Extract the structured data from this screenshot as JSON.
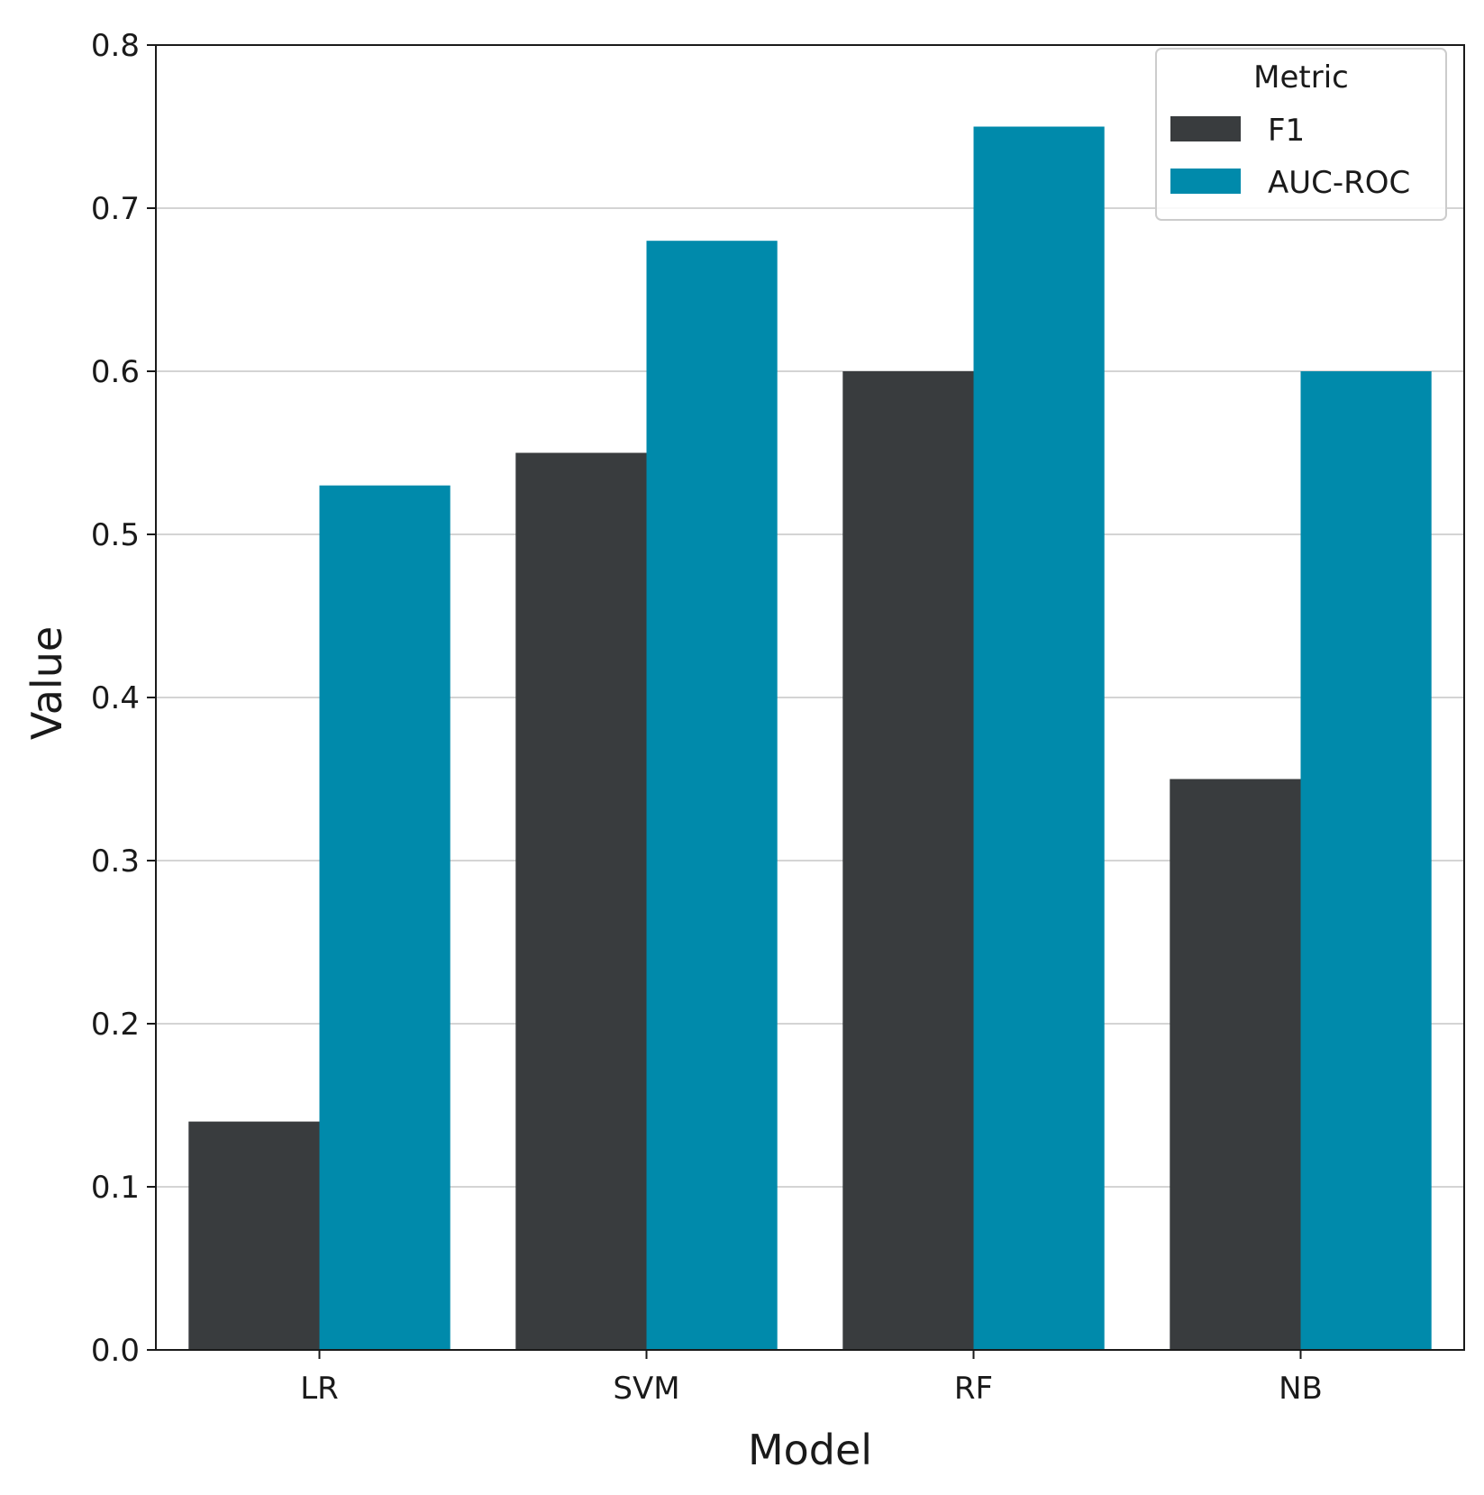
{
  "chart_data": {
    "type": "bar",
    "title": "",
    "xlabel": "Model",
    "ylabel": "Value",
    "ylim": [
      0,
      0.8
    ],
    "yticks": [
      0.0,
      0.1,
      0.2,
      0.3,
      0.4,
      0.5,
      0.6,
      0.7,
      0.8
    ],
    "ytick_labels": [
      "0.0",
      "0.1",
      "0.2",
      "0.3",
      "0.4",
      "0.5",
      "0.6",
      "0.7",
      "0.8"
    ],
    "categories": [
      "LR",
      "SVM",
      "RF",
      "NB"
    ],
    "grid": "horizontal",
    "legend": {
      "title": "Metric",
      "position": "top-right"
    },
    "series": [
      {
        "name": "F1",
        "color": "#393c3e",
        "values": [
          0.14,
          0.55,
          0.6,
          0.35
        ]
      },
      {
        "name": "AUC-ROC",
        "color": "#008aab",
        "values": [
          0.53,
          0.68,
          0.75,
          0.6
        ]
      }
    ]
  }
}
